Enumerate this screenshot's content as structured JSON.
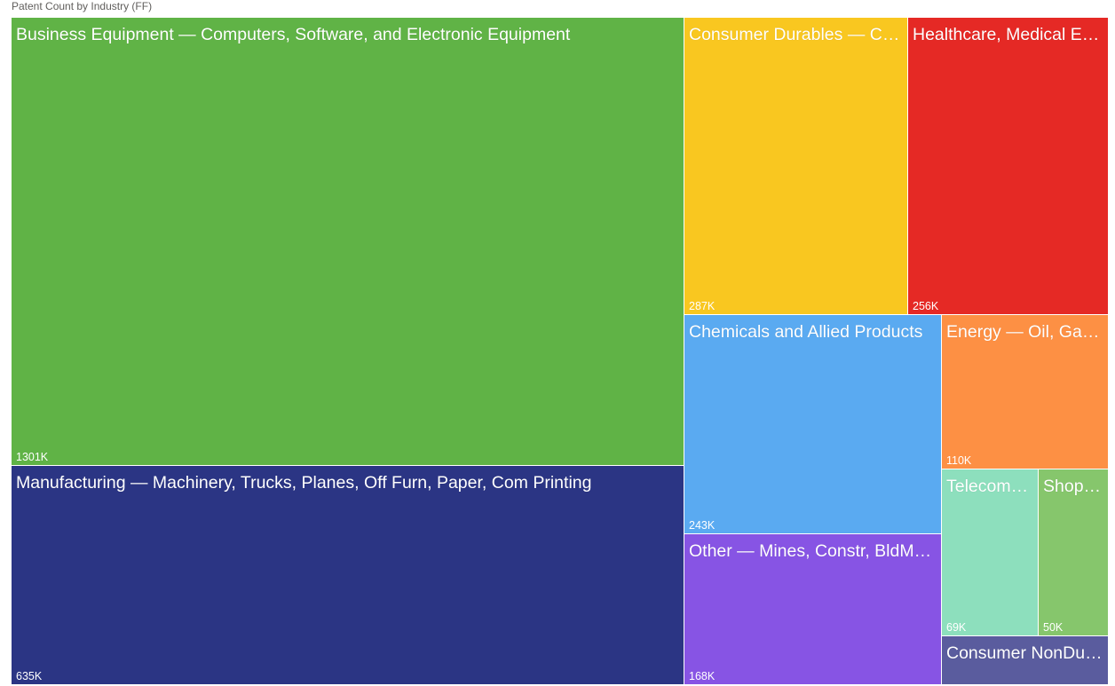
{
  "chart_data": {
    "type": "treemap",
    "title": "Patent Count by Industry (FF)",
    "value_unit": "K",
    "items": [
      {
        "label": "Business Equipment — Computers, Software, and Electronic Equipment",
        "value": 1301,
        "value_label": "1301K",
        "color": "#60b346"
      },
      {
        "label": "Manufacturing — Machinery, Trucks, Planes, Off Furn, Paper, Com Printing",
        "value": 635,
        "value_label": "635K",
        "color": "#2b3584"
      },
      {
        "label": "Consumer Durables — Cars, TVs, Furniture, Household Appliances",
        "value": 287,
        "value_label": "287K",
        "color": "#f9c720"
      },
      {
        "label": "Healthcare, Medical Equipment, and Drugs",
        "value": 256,
        "value_label": "256K",
        "color": "#e52925"
      },
      {
        "label": "Chemicals and Allied Products",
        "value": 243,
        "value_label": "243K",
        "color": "#5aaaf1"
      },
      {
        "label": "Other — Mines, Constr, BldMt, Trans, Hotels, Bus Serv, Entertainment",
        "value": 168,
        "value_label": "168K",
        "color": "#8754e4"
      },
      {
        "label": "Energy — Oil, Gas, and Coal Extraction and Products",
        "value": 110,
        "value_label": "110K",
        "color": "#fd9044"
      },
      {
        "label": "Telecommunication",
        "value": 69,
        "value_label": "69K",
        "color": "#8ddfbd"
      },
      {
        "label": "Shops — Wholesale, Retail, and Some Services",
        "value": 50,
        "value_label": "50K",
        "color": "#86c66c"
      },
      {
        "label": "Consumer NonDurables — Food, Tobacco, Textiles, Apparel, Leather, Toys",
        "value": null,
        "value_label": "",
        "color": "#5a5c9e"
      }
    ]
  }
}
